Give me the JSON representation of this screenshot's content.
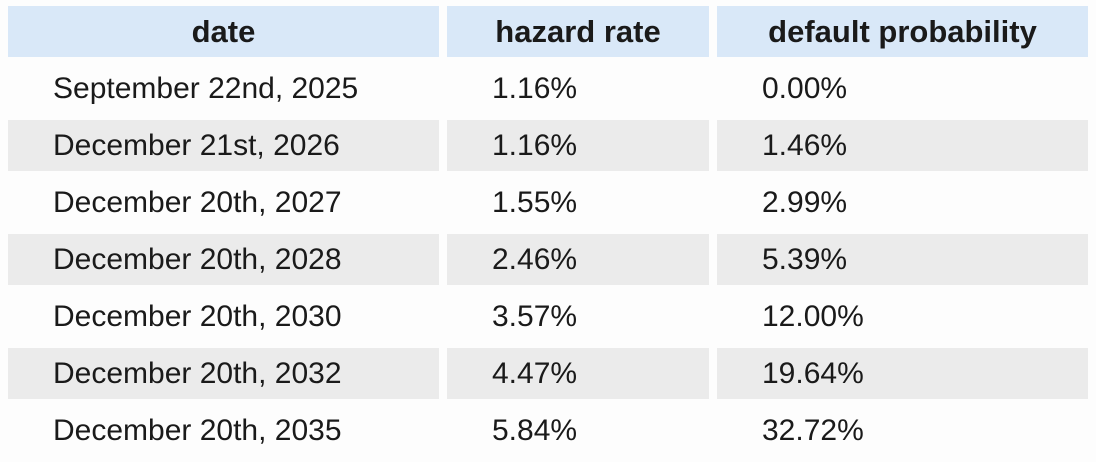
{
  "chart_data": {
    "type": "table",
    "title": "",
    "columns": [
      "date",
      "hazard rate",
      "default probability"
    ],
    "rows": [
      [
        "September 22nd, 2025",
        "1.16%",
        "0.00%"
      ],
      [
        "December 21st, 2026",
        "1.16%",
        "1.46%"
      ],
      [
        "December 20th, 2027",
        "1.55%",
        "2.99%"
      ],
      [
        "December 20th, 2028",
        "2.46%",
        "5.39%"
      ],
      [
        "December 20th, 2030",
        "3.57%",
        "12.00%"
      ],
      [
        "December 20th, 2032",
        "4.47%",
        "19.64%"
      ],
      [
        "December 20th, 2035",
        "5.84%",
        "32.72%"
      ]
    ]
  },
  "colors": {
    "header_bg": "#d9e8f8",
    "row_alt_bg": "#ebebeb",
    "page_bg": "#fdfdfd",
    "text": "#1a1a1a"
  }
}
